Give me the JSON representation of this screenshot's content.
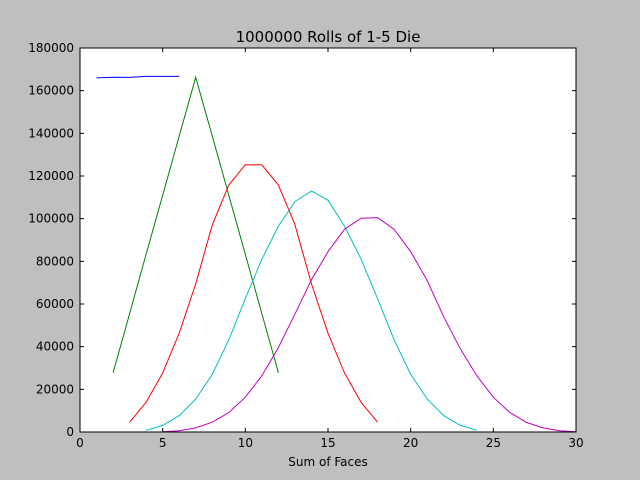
{
  "chart_data": {
    "type": "line",
    "title": "1000000 Rolls of 1-5 Die",
    "xlabel": "Sum of Faces",
    "ylabel": "",
    "xlim": [
      0,
      30
    ],
    "ylim": [
      0,
      180000
    ],
    "xticks": [
      0,
      5,
      10,
      15,
      20,
      25,
      30
    ],
    "yticks": [
      0,
      20000,
      40000,
      60000,
      80000,
      100000,
      120000,
      140000,
      160000,
      180000
    ],
    "grid": false,
    "series": [
      {
        "color": "#0000ff",
        "x": [
          1,
          2,
          3,
          4,
          5,
          6
        ],
        "y": [
          166000,
          166300,
          166200,
          166700,
          166700,
          166700
        ]
      },
      {
        "color": "#008000",
        "x": [
          2,
          3,
          4,
          5,
          6,
          7,
          8,
          9,
          10,
          11,
          12
        ],
        "y": [
          27800,
          55400,
          83300,
          111000,
          138700,
          166200,
          138700,
          111000,
          83300,
          55400,
          27800
        ]
      },
      {
        "color": "#ff0000",
        "x": [
          3,
          4,
          5,
          6,
          7,
          8,
          9,
          10,
          11,
          12,
          13,
          14,
          15,
          16,
          17,
          18
        ],
        "y": [
          4600,
          13900,
          27700,
          46300,
          69400,
          97100,
          115800,
          125300,
          125200,
          115800,
          97200,
          69400,
          46300,
          27700,
          13900,
          4600
        ]
      },
      {
        "color": "#00bfbf",
        "x": [
          4,
          5,
          6,
          7,
          8,
          9,
          10,
          11,
          12,
          13,
          14,
          15,
          16,
          17,
          18,
          19,
          20,
          21,
          22,
          23,
          24
        ],
        "y": [
          800,
          3100,
          7700,
          15400,
          27000,
          43200,
          62500,
          81000,
          96500,
          108000,
          113000,
          108600,
          96500,
          81000,
          62500,
          43200,
          27000,
          15400,
          7700,
          3100,
          800
        ]
      },
      {
        "color": "#bf00bf",
        "x": [
          5,
          6,
          7,
          8,
          9,
          10,
          11,
          12,
          13,
          14,
          15,
          16,
          17,
          18,
          19,
          20,
          21,
          22,
          23,
          24,
          25,
          26,
          27,
          28,
          29,
          30
        ],
        "y": [
          100,
          600,
          1900,
          4600,
          9100,
          16300,
          26400,
          39600,
          55200,
          71400,
          84500,
          95000,
          100200,
          100500,
          95000,
          84500,
          71000,
          54000,
          39000,
          26400,
          16300,
          9100,
          4500,
          1900,
          600,
          100
        ]
      }
    ]
  }
}
